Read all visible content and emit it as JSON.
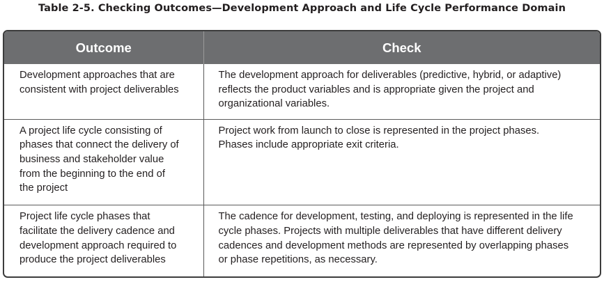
{
  "caption": "Table 2-5. Checking Outcomes—Development Approach and Life Cycle Performance Domain",
  "headers": {
    "outcome": "Outcome",
    "check": "Check"
  },
  "rows": [
    {
      "outcome": "Development approaches that are\nconsistent with project deliverables",
      "check": "The development approach for deliverables (predictive, hybrid, or adaptive)\nreflects the product variables and is appropriate given the project and\norganizational variables."
    },
    {
      "outcome": "A project life cycle consisting of\nphases that connect the delivery of\nbusiness and stakeholder value\nfrom the beginning to the end of\nthe project",
      "check": "Project work from launch to close is represented in the project phases.\nPhases include appropriate exit criteria."
    },
    {
      "outcome": "Project life cycle phases that\nfacilitate the delivery cadence and\ndevelopment approach required to\nproduce the project deliverables",
      "check": "The cadence for development, testing, and deploying is represented in the life\ncycle phases. Projects with multiple deliverables that have different delivery\ncadences and development methods are represented by overlapping phases\nor phase repetitions, as necessary."
    }
  ]
}
